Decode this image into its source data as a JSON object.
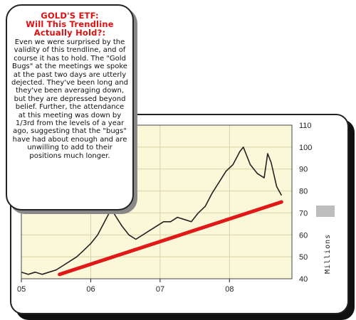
{
  "callout": {
    "title": "GOLD'S ETF:\nWill This Trendline\nActually Hold?:",
    "body": "Even we were surprised by the validity of this trendline, and of course it has to hold. The \"Gold Bugs\" at the meetings we spoke at the past two days are utterly dejected. They've been long and they've been averaging down, but they are depressed beyond belief. Further, the attendance at this meeting was down by 1/3rd from the levels of a year ago, suggesting that the \"bugs\" have had about enough and are unwilling to add to their positions much longer."
  },
  "colors": {
    "plot_background": "#fbf8d9",
    "price_line": "#222222",
    "trendline": "#e01818",
    "callout_title": "#e01010",
    "volume_marker": "#bdbdbd"
  },
  "chart_data": {
    "type": "line",
    "title": "",
    "xlabel": "",
    "ylabel": "",
    "right_axis_label": "Millions",
    "x_tick_labels": [
      "05",
      "06",
      "07",
      "08"
    ],
    "y_tick_labels": [
      "40",
      "50",
      "60",
      "70",
      "80",
      "90",
      "100",
      "110"
    ],
    "ylim": [
      40,
      110
    ],
    "xlim": [
      2005.0,
      2008.9
    ],
    "grid": true,
    "series": [
      {
        "x": [
          2005.0,
          2005.1,
          2005.2,
          2005.3,
          2005.4,
          2005.5,
          2005.6,
          2005.7,
          2005.8,
          2005.9,
          2006.0,
          2006.1,
          2006.2,
          2006.3,
          2006.35,
          2006.45,
          2006.55,
          2006.65,
          2006.75,
          2006.85,
          2006.95,
          2007.05,
          2007.15,
          2007.25,
          2007.35,
          2007.45,
          2007.55,
          2007.65,
          2007.75,
          2007.85,
          2007.95,
          2008.05,
          2008.15,
          2008.2,
          2008.3,
          2008.4,
          2008.5,
          2008.55,
          2008.6,
          2008.68,
          2008.75
        ],
        "values": [
          43,
          42,
          43,
          42,
          43,
          44,
          46,
          48,
          50,
          53,
          56,
          60,
          66,
          72,
          69,
          64,
          60,
          58,
          60,
          62,
          64,
          66,
          66,
          68,
          67,
          66,
          70,
          73,
          79,
          84,
          89,
          92,
          98,
          100,
          92,
          88,
          86,
          97,
          93,
          82,
          78
        ]
      },
      {
        "x": [
          2005.55,
          2008.75
        ],
        "values": [
          42,
          75
        ]
      }
    ]
  }
}
